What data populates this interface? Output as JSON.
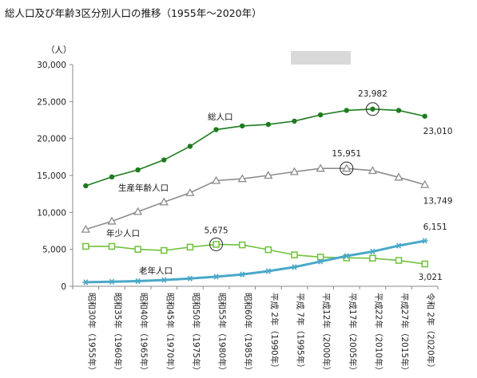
{
  "chart_data": {
    "type": "line",
    "title": "総人口及び年齢3区分別人口の推移（1955年〜2020年）",
    "ylabel": "（人）",
    "ylim": [
      0,
      30000
    ],
    "yticks": [
      0,
      5000,
      10000,
      15000,
      20000,
      25000,
      30000
    ],
    "ytick_labels": [
      "0",
      "5,000",
      "10,000",
      "15,000",
      "20,000",
      "25,000",
      "30,000"
    ],
    "grid": false,
    "categories": [
      "昭和30年（1955年）",
      "昭和35年（1960年）",
      "昭和40年（1965年）",
      "昭和45年（1970年）",
      "昭和50年（1975年）",
      "昭和55年（1980年）",
      "昭和60年（1985年）",
      "平成 2年（1990年）",
      "平成 7年（1995年）",
      "平成12年（2000年）",
      "平成17年（2005年）",
      "平成22年（2010年）",
      "平成27年（2015年）",
      "令和 2年（2020年）"
    ],
    "series": [
      {
        "name": "総人口",
        "color": "#1e7b1e",
        "marker": "filled-circle",
        "values": [
          13600,
          14800,
          15750,
          17100,
          18950,
          21200,
          21700,
          21900,
          22350,
          23200,
          23800,
          23982,
          23800,
          23010
        ]
      },
      {
        "name": "生産年齢人口",
        "color": "#8c8c8c",
        "marker": "hollow-triangle",
        "values": [
          7700,
          8800,
          10100,
          11400,
          12650,
          14300,
          14550,
          15000,
          15500,
          15951,
          15951,
          15650,
          14750,
          13749
        ]
      },
      {
        "name": "年少人口",
        "color": "#6fc13a",
        "marker": "hollow-square",
        "values": [
          5400,
          5400,
          5000,
          4850,
          5300,
          5675,
          5600,
          4950,
          4250,
          3950,
          3850,
          3800,
          3500,
          3021
        ]
      },
      {
        "name": "老年人口",
        "color": "#4aa8c9",
        "marker": "asterisk",
        "values": [
          550,
          620,
          700,
          850,
          1050,
          1300,
          1600,
          2050,
          2600,
          3350,
          4100,
          4700,
          5500,
          6151
        ]
      }
    ],
    "annotations": [
      {
        "text": "23,982",
        "series": 0,
        "index": 11,
        "circled": true
      },
      {
        "text": "23,010",
        "series": 0,
        "index": 13
      },
      {
        "text": "15,951",
        "series": 1,
        "index": 10,
        "circled": true
      },
      {
        "text": "13,749",
        "series": 1,
        "index": 13
      },
      {
        "text": "5,675",
        "series": 2,
        "index": 5,
        "circled": true
      },
      {
        "text": "3,021",
        "series": 2,
        "index": 13
      },
      {
        "text": "6,151",
        "series": 3,
        "index": 13
      }
    ]
  }
}
